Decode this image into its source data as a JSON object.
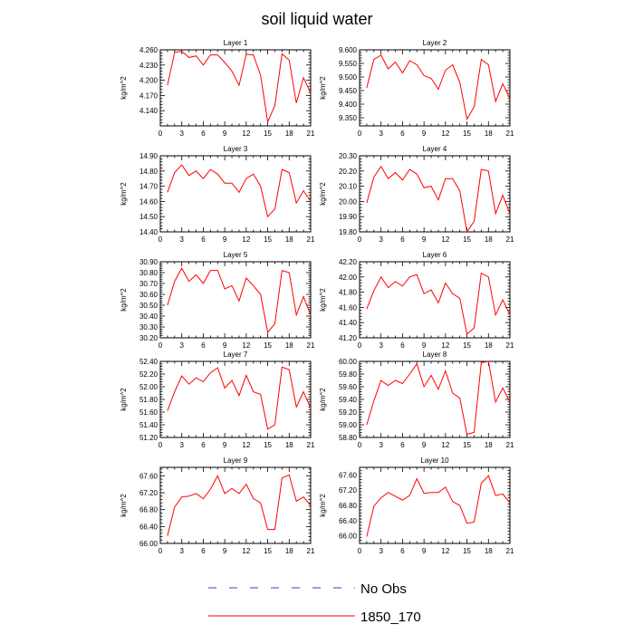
{
  "title": "soil liquid water",
  "legend": [
    {
      "label": "No Obs",
      "color": "#3f3fbf",
      "dash": "dashed"
    },
    {
      "label": "1850_170",
      "color": "#ff0000",
      "dash": "solid"
    }
  ],
  "chart_data": [
    {
      "type": "line",
      "title": "Layer 1",
      "ylabel": "kg/m^2",
      "xlim": [
        0,
        21
      ],
      "ylim": [
        4.11,
        4.26
      ],
      "xticks": [
        0,
        3,
        6,
        9,
        12,
        15,
        18,
        21
      ],
      "yticks": [
        "4.140",
        "4.170",
        "4.200",
        "4.230",
        "4.260"
      ],
      "x": [
        1,
        2,
        3,
        4,
        5,
        6,
        7,
        8,
        9,
        10,
        11,
        12,
        13,
        14,
        15,
        16,
        17,
        18,
        19,
        20,
        21
      ],
      "series": [
        {
          "name": "1850_170",
          "values": [
            4.19,
            4.255,
            4.257,
            4.245,
            4.248,
            4.23,
            4.25,
            4.25,
            4.235,
            4.218,
            4.19,
            4.251,
            4.25,
            4.21,
            4.118,
            4.15,
            4.252,
            4.24,
            4.155,
            4.205,
            4.175
          ]
        }
      ]
    },
    {
      "type": "line",
      "title": "Layer 2",
      "ylabel": "kg/m^2",
      "xlim": [
        0,
        21
      ],
      "ylim": [
        9.32,
        9.6
      ],
      "xticks": [
        0,
        3,
        6,
        9,
        12,
        15,
        18,
        21
      ],
      "yticks": [
        "9.350",
        "9.400",
        "9.450",
        "9.500",
        "9.550",
        "9.600"
      ],
      "x": [
        1,
        2,
        3,
        4,
        5,
        6,
        7,
        8,
        9,
        10,
        11,
        12,
        13,
        14,
        15,
        16,
        17,
        18,
        19,
        20,
        21
      ],
      "series": [
        {
          "name": "1850_170",
          "values": [
            9.46,
            9.565,
            9.58,
            9.53,
            9.555,
            9.515,
            9.56,
            9.545,
            9.505,
            9.495,
            9.455,
            9.525,
            9.545,
            9.48,
            9.345,
            9.39,
            9.565,
            9.545,
            9.41,
            9.475,
            9.42
          ]
        }
      ]
    },
    {
      "type": "line",
      "title": "Layer 3",
      "ylabel": "kg/m^2",
      "xlim": [
        0,
        21
      ],
      "ylim": [
        14.4,
        14.9
      ],
      "xticks": [
        0,
        3,
        6,
        9,
        12,
        15,
        18,
        21
      ],
      "yticks": [
        "14.40",
        "14.50",
        "14.60",
        "14.70",
        "14.80",
        "14.90"
      ],
      "x": [
        1,
        2,
        3,
        4,
        5,
        6,
        7,
        8,
        9,
        10,
        11,
        12,
        13,
        14,
        15,
        16,
        17,
        18,
        19,
        20,
        21
      ],
      "series": [
        {
          "name": "1850_170",
          "values": [
            14.66,
            14.79,
            14.84,
            14.77,
            14.8,
            14.75,
            14.81,
            14.78,
            14.72,
            14.72,
            14.66,
            14.75,
            14.78,
            14.7,
            14.5,
            14.55,
            14.81,
            14.79,
            14.59,
            14.67,
            14.6
          ]
        }
      ]
    },
    {
      "type": "line",
      "title": "Layer 4",
      "ylabel": "kg/m^2",
      "xlim": [
        0,
        21
      ],
      "ylim": [
        19.8,
        20.3
      ],
      "xticks": [
        0,
        3,
        6,
        9,
        12,
        15,
        18,
        21
      ],
      "yticks": [
        "19.80",
        "19.90",
        "20.00",
        "20.10",
        "20.20",
        "20.30"
      ],
      "x": [
        1,
        2,
        3,
        4,
        5,
        6,
        7,
        8,
        9,
        10,
        11,
        12,
        13,
        14,
        15,
        16,
        17,
        18,
        19,
        20,
        21
      ],
      "series": [
        {
          "name": "1850_170",
          "values": [
            19.99,
            20.16,
            20.23,
            20.15,
            20.19,
            20.14,
            20.21,
            20.18,
            20.09,
            20.1,
            20.01,
            20.15,
            20.15,
            20.07,
            19.8,
            19.87,
            20.21,
            20.2,
            19.92,
            20.04,
            19.92
          ]
        }
      ]
    },
    {
      "type": "line",
      "title": "Layer 5",
      "ylabel": "kg/m^2",
      "xlim": [
        0,
        21
      ],
      "ylim": [
        30.2,
        30.9
      ],
      "xticks": [
        0,
        3,
        6,
        9,
        12,
        15,
        18,
        21
      ],
      "yticks": [
        "30.20",
        "30.30",
        "30.40",
        "30.50",
        "30.60",
        "30.70",
        "30.80",
        "30.90"
      ],
      "x": [
        1,
        2,
        3,
        4,
        5,
        6,
        7,
        8,
        9,
        10,
        11,
        12,
        13,
        14,
        15,
        16,
        17,
        18,
        19,
        20,
        21
      ],
      "series": [
        {
          "name": "1850_170",
          "values": [
            30.5,
            30.72,
            30.84,
            30.72,
            30.78,
            30.7,
            30.82,
            30.82,
            30.65,
            30.68,
            30.54,
            30.75,
            30.68,
            30.6,
            30.25,
            30.33,
            30.82,
            30.8,
            30.41,
            30.58,
            30.41
          ]
        }
      ]
    },
    {
      "type": "line",
      "title": "Layer 6",
      "ylabel": "kg/m^2",
      "xlim": [
        0,
        21
      ],
      "ylim": [
        41.2,
        42.2
      ],
      "xticks": [
        0,
        3,
        6,
        9,
        12,
        15,
        18,
        21
      ],
      "yticks": [
        "41.20",
        "41.40",
        "41.60",
        "41.80",
        "42.00",
        "42.20"
      ],
      "x": [
        1,
        2,
        3,
        4,
        5,
        6,
        7,
        8,
        9,
        10,
        11,
        12,
        13,
        14,
        15,
        16,
        17,
        18,
        19,
        20,
        21
      ],
      "series": [
        {
          "name": "1850_170",
          "values": [
            41.58,
            41.82,
            42.0,
            41.86,
            41.94,
            41.88,
            42.0,
            42.03,
            41.78,
            41.83,
            41.66,
            41.92,
            41.78,
            41.72,
            41.25,
            41.33,
            42.05,
            42.0,
            41.5,
            41.7,
            41.5
          ]
        }
      ]
    },
    {
      "type": "line",
      "title": "Layer 7",
      "ylabel": "kg/m^2",
      "xlim": [
        0,
        21
      ],
      "ylim": [
        51.2,
        52.4
      ],
      "xticks": [
        0,
        3,
        6,
        9,
        12,
        15,
        18,
        21
      ],
      "yticks": [
        "51.20",
        "51.40",
        "51.60",
        "51.80",
        "52.00",
        "52.20",
        "52.40"
      ],
      "x": [
        1,
        2,
        3,
        4,
        5,
        6,
        7,
        8,
        9,
        10,
        11,
        12,
        13,
        14,
        15,
        16,
        17,
        18,
        19,
        20,
        21
      ],
      "series": [
        {
          "name": "1850_170",
          "values": [
            51.62,
            51.92,
            52.17,
            52.04,
            52.14,
            52.08,
            52.22,
            52.3,
            51.98,
            52.1,
            51.86,
            52.18,
            51.92,
            51.88,
            51.33,
            51.4,
            52.31,
            52.27,
            51.68,
            51.92,
            51.66
          ]
        }
      ]
    },
    {
      "type": "line",
      "title": "Layer 8",
      "ylabel": "kg/m^2",
      "xlim": [
        0,
        21
      ],
      "ylim": [
        58.8,
        60.0
      ],
      "xticks": [
        0,
        3,
        6,
        9,
        12,
        15,
        18,
        21
      ],
      "yticks": [
        "58.80",
        "59.00",
        "59.20",
        "59.40",
        "59.60",
        "59.80",
        "60.00"
      ],
      "x": [
        1,
        2,
        3,
        4,
        5,
        6,
        7,
        8,
        9,
        10,
        11,
        12,
        13,
        14,
        15,
        16,
        17,
        18,
        19,
        20,
        21
      ],
      "series": [
        {
          "name": "1850_170",
          "values": [
            59.0,
            59.38,
            59.7,
            59.62,
            59.7,
            59.65,
            59.8,
            59.96,
            59.6,
            59.78,
            59.56,
            59.85,
            59.5,
            59.42,
            58.85,
            58.88,
            59.98,
            60.0,
            59.36,
            59.58,
            59.36
          ]
        }
      ]
    },
    {
      "type": "line",
      "title": "Layer 9",
      "ylabel": "kg/m^2",
      "xlim": [
        0,
        21
      ],
      "ylim": [
        66.0,
        67.8
      ],
      "xticks": [
        0,
        3,
        6,
        9,
        12,
        15,
        18,
        21
      ],
      "yticks": [
        "66.00",
        "66.40",
        "66.80",
        "67.20",
        "67.60"
      ],
      "x": [
        1,
        2,
        3,
        4,
        5,
        6,
        7,
        8,
        9,
        10,
        11,
        12,
        13,
        14,
        15,
        16,
        17,
        18,
        19,
        20,
        21
      ],
      "series": [
        {
          "name": "1850_170",
          "values": [
            66.18,
            66.86,
            67.1,
            67.12,
            67.18,
            67.06,
            67.28,
            67.6,
            67.18,
            67.3,
            67.18,
            67.4,
            67.06,
            66.96,
            66.33,
            66.33,
            67.55,
            67.62,
            67.0,
            67.1,
            66.9
          ]
        }
      ]
    },
    {
      "type": "line",
      "title": "Layer 10",
      "ylabel": "kg/m^2",
      "xlim": [
        0,
        21
      ],
      "ylim": [
        65.8,
        67.8
      ],
      "xticks": [
        0,
        3,
        6,
        9,
        12,
        15,
        18,
        21
      ],
      "yticks": [
        "66.00",
        "66.40",
        "66.80",
        "67.20",
        "67.60"
      ],
      "x": [
        1,
        2,
        3,
        4,
        5,
        6,
        7,
        8,
        9,
        10,
        11,
        12,
        13,
        14,
        15,
        16,
        17,
        18,
        19,
        20,
        21
      ],
      "series": [
        {
          "name": "1850_170",
          "values": [
            65.98,
            66.78,
            67.0,
            67.14,
            67.04,
            66.94,
            67.06,
            67.5,
            67.12,
            67.14,
            67.14,
            67.28,
            66.9,
            66.8,
            66.33,
            66.36,
            67.38,
            67.58,
            67.06,
            67.1,
            66.86
          ]
        }
      ]
    }
  ]
}
